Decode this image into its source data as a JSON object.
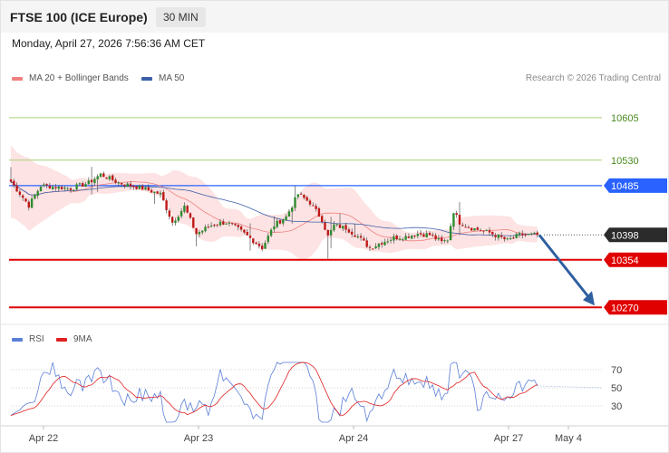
{
  "header": {
    "title": "FTSE 100 (ICE Europe)",
    "timeframe": "30 MIN"
  },
  "datetime": "Monday, April 27, 2026 7:56:36 AM CET",
  "legend": {
    "ma20": {
      "label": "MA 20 + Bollinger Bands",
      "color": "#f08080"
    },
    "ma50": {
      "label": "MA 50",
      "color": "#3b5fa8"
    },
    "rsi": {
      "label": "RSI",
      "color": "#5b7fd6"
    },
    "rsi_ma": {
      "label": "9MA",
      "color": "#e02020"
    }
  },
  "credit": "Research © 2026 Trading Central",
  "colors": {
    "support": "#e00000",
    "resistance_line": "#a6d27a",
    "pivot": "#2962ff",
    "last": "#2b2b2b",
    "arrow": "#2e5fa0",
    "band": "#fde3e3"
  },
  "chart_data": [
    {
      "type": "candlestick",
      "title": "FTSE 100 (ICE Europe)",
      "interval": "30 MIN",
      "x_tick_labels": [
        "Apr 22",
        "Apr 23",
        "Apr 24",
        "Apr 27",
        "May 4"
      ],
      "y_range": [
        10240,
        10720
      ],
      "levels": [
        {
          "label": "10605",
          "value": 10605,
          "kind": "resistance"
        },
        {
          "label": "10530",
          "value": 10530,
          "kind": "resistance"
        },
        {
          "label": "10485",
          "value": 10485,
          "kind": "pivot"
        },
        {
          "label": "10398",
          "value": 10398,
          "kind": "last"
        },
        {
          "label": "10354",
          "value": 10354,
          "kind": "support"
        },
        {
          "label": "10270",
          "value": 10270,
          "kind": "support"
        }
      ],
      "projection": {
        "from": 10398,
        "to": 10270,
        "direction": "down"
      },
      "anchors": [
        [
          0,
          10492
        ],
        [
          6,
          10450
        ],
        [
          10,
          10485
        ],
        [
          20,
          10480
        ],
        [
          26,
          10490
        ],
        [
          30,
          10505
        ],
        [
          36,
          10490
        ],
        [
          44,
          10480
        ],
        [
          50,
          10470
        ],
        [
          54,
          10420
        ],
        [
          58,
          10448
        ],
        [
          62,
          10400
        ],
        [
          68,
          10418
        ],
        [
          72,
          10420
        ],
        [
          76,
          10408
        ],
        [
          80,
          10392
        ],
        [
          84,
          10375
        ],
        [
          88,
          10415
        ],
        [
          92,
          10430
        ],
        [
          96,
          10470
        ],
        [
          100,
          10455
        ],
        [
          104,
          10425
        ],
        [
          106,
          10395
        ],
        [
          108,
          10415
        ],
        [
          112,
          10410
        ],
        [
          116,
          10395
        ],
        [
          120,
          10375
        ],
        [
          124,
          10385
        ],
        [
          128,
          10393
        ],
        [
          132,
          10395
        ],
        [
          136,
          10400
        ],
        [
          140,
          10398
        ],
        [
          144,
          10385
        ],
        [
          146,
          10390
        ],
        [
          148,
          10440
        ],
        [
          150,
          10420
        ],
        [
          154,
          10410
        ],
        [
          160,
          10402
        ],
        [
          166,
          10388
        ],
        [
          170,
          10398
        ],
        [
          176,
          10398
        ]
      ]
    },
    {
      "type": "line",
      "title": "RSI",
      "y_ticks": [
        70,
        50,
        30
      ],
      "y_range": [
        10,
        90
      ],
      "series": [
        {
          "name": "RSI"
        },
        {
          "name": "9MA"
        }
      ]
    }
  ]
}
